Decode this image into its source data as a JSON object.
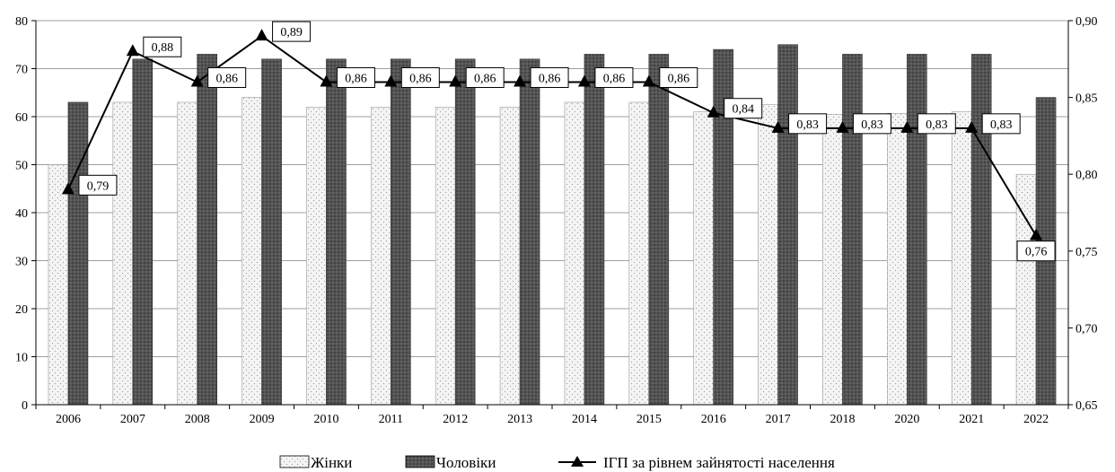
{
  "chart_data": {
    "type": "bar",
    "categories": [
      "2006",
      "2007",
      "2008",
      "2009",
      "2010",
      "2011",
      "2012",
      "2013",
      "2014",
      "2015",
      "2016",
      "2017",
      "2018",
      "2020",
      "2021",
      "2022"
    ],
    "series": [
      {
        "name": "Жінки",
        "type": "bar",
        "axis": "left",
        "pattern": "dotted-light",
        "values": [
          50,
          63,
          63,
          64,
          62,
          62,
          62,
          62,
          63,
          63,
          61,
          62.5,
          60.5,
          60.7,
          61,
          48
        ]
      },
      {
        "name": "Чоловіки",
        "type": "bar",
        "axis": "left",
        "pattern": "dark-textured",
        "values": [
          63,
          72,
          73,
          72,
          72,
          72,
          72,
          72,
          73,
          73,
          74,
          75,
          73,
          73,
          73,
          64
        ]
      },
      {
        "name": "ІГП за рівнем зайнятості населення",
        "type": "line",
        "axis": "right",
        "marker": "triangle",
        "values": [
          0.79,
          0.88,
          0.86,
          0.89,
          0.86,
          0.86,
          0.86,
          0.86,
          0.86,
          0.86,
          0.84,
          0.83,
          0.83,
          0.83,
          0.83,
          0.76
        ],
        "labels": [
          "0,79",
          "0,88",
          "0,86",
          "0,89",
          "0,86",
          "0,86",
          "0,86",
          "0,86",
          "0,86",
          "0,86",
          "0,84",
          "0,83",
          "0,83",
          "0,83",
          "0,83",
          "0,76"
        ]
      }
    ],
    "y_left": {
      "lim": [
        0,
        80
      ],
      "ticks": [
        "0",
        "10",
        "20",
        "30",
        "40",
        "50",
        "60",
        "70",
        "80"
      ]
    },
    "y_right": {
      "lim": [
        0.65,
        0.9
      ],
      "ticks": [
        "0,65",
        "0,70",
        "0,75",
        "0,80",
        "0,85",
        "0,90"
      ]
    },
    "grid": true,
    "legend_position": "bottom",
    "title": "",
    "xlabel": "",
    "ylabel": ""
  },
  "legend": {
    "women": "Жінки",
    "men": "Чоловіки",
    "index": "ІГП за рівнем зайнятості населення"
  },
  "colors": {
    "women_fill": "#f4f4f4",
    "men_fill": "#555555",
    "line": "#000000",
    "grid": "#7f7f7f"
  }
}
